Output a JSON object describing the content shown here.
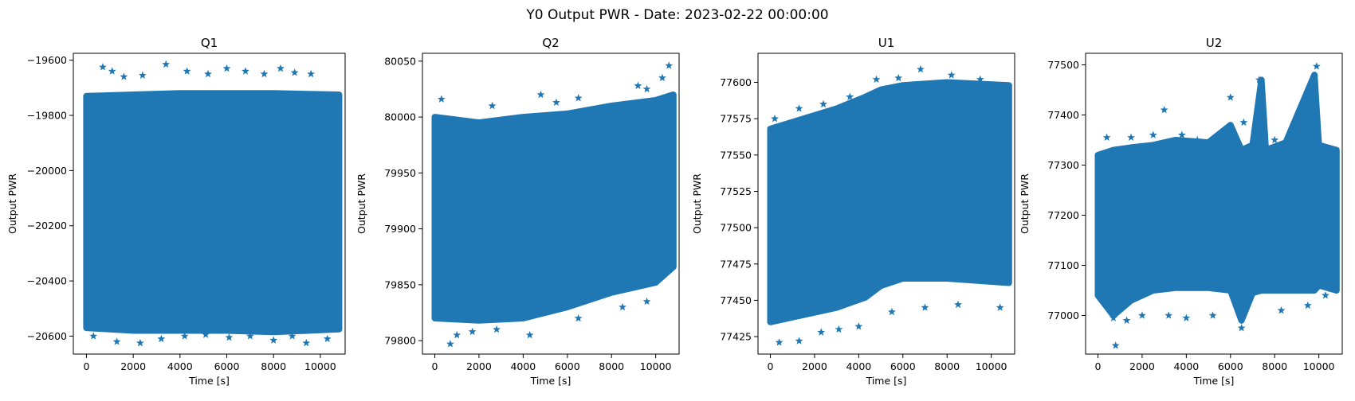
{
  "figure": {
    "suptitle": "Y0 Output PWR - Date: 2023-02-22 00:00:00"
  },
  "colors": {
    "series": "#1f77b4",
    "axis": "#000000"
  },
  "chart_data": [
    {
      "type": "scatter",
      "title": "Q1",
      "xlabel": "Time [s]",
      "ylabel": "Output PWR",
      "xlim": [
        -560,
        11060
      ],
      "ylim": [
        -20665,
        -19575
      ],
      "xticks": [
        0,
        2000,
        4000,
        6000,
        8000,
        10000
      ],
      "xtick_labels": [
        "0",
        "2000",
        "4000",
        "6000",
        "8000",
        "10000"
      ],
      "yticks": [
        -20600,
        -20400,
        -20200,
        -20000,
        -19800,
        -19600
      ],
      "ytick_labels": [
        "−20600",
        "−20400",
        "−20200",
        "−20000",
        "−19800",
        "−19600"
      ],
      "grid": false,
      "marker": "star",
      "x_range": [
        0,
        10800
      ],
      "band": [
        [
          0,
          -20570,
          -19730
        ],
        [
          2000,
          -20580,
          -19725
        ],
        [
          4000,
          -20580,
          -19720
        ],
        [
          6000,
          -20580,
          -19720
        ],
        [
          8000,
          -20585,
          -19720
        ],
        [
          10800,
          -20575,
          -19725
        ]
      ],
      "outliers": [
        [
          700,
          -19625
        ],
        [
          1100,
          -19640
        ],
        [
          1600,
          -19660
        ],
        [
          2400,
          -19655
        ],
        [
          3400,
          -19615
        ],
        [
          4300,
          -19640
        ],
        [
          5200,
          -19650
        ],
        [
          6000,
          -19630
        ],
        [
          6800,
          -19640
        ],
        [
          7600,
          -19650
        ],
        [
          8300,
          -19630
        ],
        [
          8900,
          -19645
        ],
        [
          9600,
          -19650
        ],
        [
          300,
          -20600
        ],
        [
          1300,
          -20620
        ],
        [
          2300,
          -20625
        ],
        [
          3200,
          -20610
        ],
        [
          4200,
          -20600
        ],
        [
          5100,
          -20595
        ],
        [
          6100,
          -20605
        ],
        [
          7000,
          -20600
        ],
        [
          8000,
          -20615
        ],
        [
          8800,
          -20600
        ],
        [
          9400,
          -20625
        ],
        [
          10300,
          -20610
        ]
      ]
    },
    {
      "type": "scatter",
      "title": "Q2",
      "xlabel": "Time [s]",
      "ylabel": "Output PWR",
      "xlim": [
        -560,
        11060
      ],
      "ylim": [
        79788,
        80057
      ],
      "xticks": [
        0,
        2000,
        4000,
        6000,
        8000,
        10000
      ],
      "xtick_labels": [
        "0",
        "2000",
        "4000",
        "6000",
        "8000",
        "10000"
      ],
      "yticks": [
        79800,
        79850,
        79900,
        79950,
        80000,
        80050
      ],
      "ytick_labels": [
        "79800",
        "79850",
        "79900",
        "79950",
        "80000",
        "80050"
      ],
      "grid": false,
      "marker": "star",
      "x_range": [
        0,
        10800
      ],
      "band": [
        [
          0,
          79820,
          80000
        ],
        [
          2000,
          79818,
          79995
        ],
        [
          4000,
          79820,
          80000
        ],
        [
          6000,
          79830,
          80003
        ],
        [
          8000,
          79843,
          80010
        ],
        [
          10000,
          79852,
          80015
        ],
        [
          10800,
          79866,
          80020
        ]
      ],
      "outliers": [
        [
          300,
          80016
        ],
        [
          2600,
          80010
        ],
        [
          4800,
          80020
        ],
        [
          5500,
          80013
        ],
        [
          6500,
          80017
        ],
        [
          9200,
          80028
        ],
        [
          9600,
          80025
        ],
        [
          10300,
          80035
        ],
        [
          10600,
          80046
        ],
        [
          700,
          79797
        ],
        [
          1000,
          79805
        ],
        [
          1700,
          79808
        ],
        [
          2800,
          79810
        ],
        [
          4300,
          79805
        ],
        [
          6500,
          79820
        ],
        [
          8500,
          79830
        ],
        [
          9600,
          79835
        ]
      ]
    },
    {
      "type": "scatter",
      "title": "U1",
      "xlabel": "Time [s]",
      "ylabel": "Output PWR",
      "xlim": [
        -560,
        11060
      ],
      "ylim": [
        77413,
        77620
      ],
      "xticks": [
        0,
        2000,
        4000,
        6000,
        8000,
        10000
      ],
      "xtick_labels": [
        "0",
        "2000",
        "4000",
        "6000",
        "8000",
        "10000"
      ],
      "yticks": [
        77425,
        77450,
        77475,
        77500,
        77525,
        77550,
        77575,
        77600
      ],
      "ytick_labels": [
        "77425",
        "77450",
        "77475",
        "77500",
        "77525",
        "77550",
        "77575",
        "77600"
      ],
      "grid": false,
      "marker": "star",
      "x_range": [
        0,
        10800
      ],
      "band": [
        [
          0,
          77435,
          77568
        ],
        [
          1500,
          77440,
          77575
        ],
        [
          3000,
          77445,
          77582
        ],
        [
          4300,
          77452,
          77590
        ],
        [
          5000,
          77460,
          77595
        ],
        [
          6000,
          77465,
          77598
        ],
        [
          8000,
          77465,
          77600
        ],
        [
          10800,
          77462,
          77598
        ]
      ],
      "outliers": [
        [
          200,
          77575
        ],
        [
          1300,
          77582
        ],
        [
          2400,
          77585
        ],
        [
          3600,
          77590
        ],
        [
          4800,
          77602
        ],
        [
          5800,
          77603
        ],
        [
          6800,
          77609
        ],
        [
          8200,
          77605
        ],
        [
          9500,
          77602
        ],
        [
          400,
          77421
        ],
        [
          1300,
          77422
        ],
        [
          2300,
          77428
        ],
        [
          3100,
          77430
        ],
        [
          4000,
          77432
        ],
        [
          5500,
          77442
        ],
        [
          7000,
          77445
        ],
        [
          8500,
          77447
        ],
        [
          10400,
          77445
        ]
      ]
    },
    {
      "type": "scatter",
      "title": "U2",
      "xlabel": "Time [s]",
      "ylabel": "Output PWR",
      "xlim": [
        -560,
        11060
      ],
      "ylim": [
        76923,
        77523
      ],
      "xticks": [
        0,
        2000,
        4000,
        6000,
        8000,
        10000
      ],
      "xtick_labels": [
        "0",
        "2000",
        "4000",
        "6000",
        "8000",
        "10000"
      ],
      "yticks": [
        77000,
        77100,
        77200,
        77300,
        77400,
        77500
      ],
      "ytick_labels": [
        "77000",
        "77100",
        "77200",
        "77300",
        "77400",
        "77500"
      ],
      "grid": false,
      "marker": "star",
      "x_range": [
        0,
        10800
      ],
      "band": [
        [
          0,
          77040,
          77320
        ],
        [
          700,
          77000,
          77330
        ],
        [
          1500,
          77030,
          77335
        ],
        [
          2500,
          77050,
          77340
        ],
        [
          3500,
          77055,
          77350
        ],
        [
          5000,
          77055,
          77345
        ],
        [
          6000,
          77050,
          77380
        ],
        [
          6500,
          76990,
          77330
        ],
        [
          7000,
          77045,
          77340
        ],
        [
          7400,
          77050,
          77470
        ],
        [
          7600,
          77050,
          77330
        ],
        [
          8500,
          77050,
          77345
        ],
        [
          9800,
          77050,
          77480
        ],
        [
          10000,
          77060,
          77340
        ],
        [
          10800,
          77050,
          77330
        ]
      ],
      "outliers": [
        [
          400,
          77355
        ],
        [
          1500,
          77355
        ],
        [
          2500,
          77360
        ],
        [
          3000,
          77410
        ],
        [
          3800,
          77360
        ],
        [
          4500,
          77350
        ],
        [
          6000,
          77435
        ],
        [
          6600,
          77385
        ],
        [
          7300,
          77470
        ],
        [
          8000,
          77350
        ],
        [
          9300,
          77360
        ],
        [
          9900,
          77497
        ],
        [
          700,
          76995
        ],
        [
          800,
          76940
        ],
        [
          1300,
          76990
        ],
        [
          2000,
          77000
        ],
        [
          3200,
          77000
        ],
        [
          4000,
          76995
        ],
        [
          5200,
          77000
        ],
        [
          6500,
          76975
        ],
        [
          8300,
          77010
        ],
        [
          9500,
          77020
        ],
        [
          10300,
          77040
        ]
      ]
    }
  ]
}
